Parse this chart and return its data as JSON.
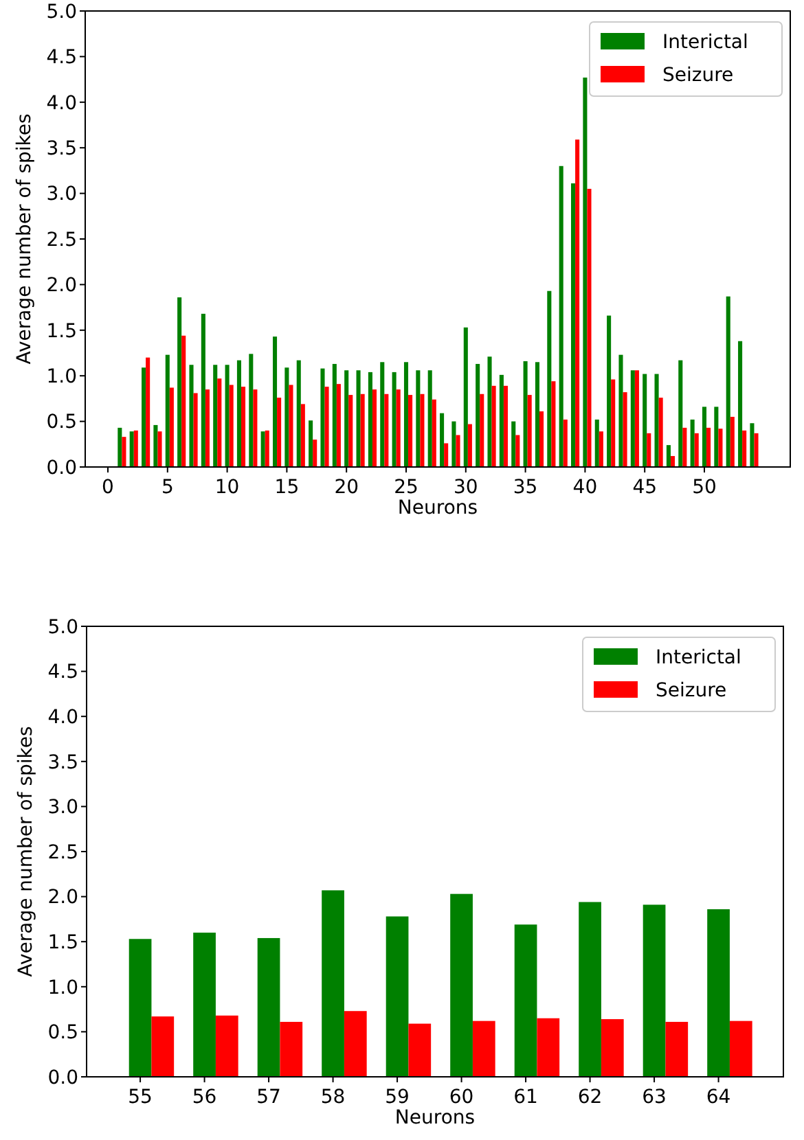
{
  "chart_data": [
    {
      "type": "bar",
      "xlabel": "Neurons",
      "ylabel": "Average number of spikes",
      "x": [
        1,
        2,
        3,
        4,
        5,
        6,
        7,
        8,
        9,
        10,
        11,
        12,
        13,
        14,
        15,
        16,
        17,
        18,
        19,
        20,
        21,
        22,
        23,
        24,
        25,
        26,
        27,
        28,
        29,
        30,
        31,
        32,
        33,
        34,
        35,
        36,
        37,
        38,
        39,
        40,
        41,
        42,
        43,
        44,
        45,
        46,
        47,
        48,
        49,
        50,
        51,
        52,
        53,
        54
      ],
      "series": [
        {
          "name": "Interictal",
          "color": "#008000",
          "values": [
            0.43,
            0.39,
            1.09,
            0.46,
            1.23,
            1.86,
            1.12,
            1.68,
            1.12,
            1.12,
            1.17,
            1.24,
            0.39,
            1.43,
            1.09,
            1.17,
            0.51,
            1.08,
            1.13,
            1.06,
            1.06,
            1.04,
            1.15,
            1.04,
            1.15,
            1.06,
            1.06,
            0.59,
            0.5,
            1.53,
            1.13,
            1.21,
            1.01,
            0.5,
            1.16,
            1.15,
            1.93,
            3.3,
            3.11,
            4.27,
            0.52,
            1.66,
            1.23,
            1.06,
            1.02,
            1.02,
            0.24,
            1.17,
            0.52,
            0.66,
            0.66,
            1.87,
            1.38,
            0.48
          ]
        },
        {
          "name": "Seizure",
          "color": "#ff0000",
          "values": [
            0.33,
            0.4,
            1.2,
            0.39,
            0.87,
            1.44,
            0.81,
            0.85,
            0.97,
            0.9,
            0.88,
            0.85,
            0.4,
            0.76,
            0.9,
            0.69,
            0.3,
            0.88,
            0.91,
            0.79,
            0.8,
            0.85,
            0.8,
            0.85,
            0.79,
            0.8,
            0.74,
            0.26,
            0.35,
            0.47,
            0.8,
            0.89,
            0.89,
            0.35,
            0.79,
            0.61,
            0.94,
            0.52,
            3.59,
            3.05,
            0.39,
            0.96,
            0.82,
            1.06,
            0.37,
            0.76,
            0.12,
            0.43,
            0.37,
            0.43,
            0.42,
            0.55,
            0.4,
            0.37
          ]
        }
      ],
      "xlim": [
        -1.9,
        57.2
      ],
      "xticks": [
        0,
        5,
        10,
        15,
        20,
        25,
        30,
        35,
        40,
        45,
        50
      ],
      "ylim": [
        0,
        5
      ],
      "yticks": [
        {
          "value": 0,
          "label": "0.0"
        },
        {
          "value": 0.5,
          "label": "0.5"
        },
        {
          "value": 1,
          "label": "1.0"
        },
        {
          "value": 1.5,
          "label": "1.5"
        },
        {
          "value": 2,
          "label": "2.0"
        },
        {
          "value": 2.5,
          "label": "2.5"
        },
        {
          "value": 3,
          "label": "3.0"
        },
        {
          "value": 3.5,
          "label": "3.5"
        },
        {
          "value": 4,
          "label": "4.0"
        },
        {
          "value": 4.5,
          "label": "4.5"
        },
        {
          "value": 5,
          "label": "5.0"
        }
      ],
      "legend": "top right"
    },
    {
      "type": "bar",
      "xlabel": "Neurons",
      "ylabel": "Average number of spikes",
      "categories": [
        "55",
        "56",
        "57",
        "58",
        "59",
        "60",
        "61",
        "62",
        "63",
        "64"
      ],
      "series": [
        {
          "name": "Interictal",
          "color": "#008000",
          "values": [
            1.53,
            1.6,
            1.54,
            2.07,
            1.78,
            2.03,
            1.69,
            1.94,
            1.91,
            1.86
          ]
        },
        {
          "name": "Seizure",
          "color": "#ff0000",
          "values": [
            0.67,
            0.68,
            0.61,
            0.73,
            0.59,
            0.62,
            0.65,
            0.64,
            0.61,
            0.62
          ]
        }
      ],
      "ylim": [
        0,
        5
      ],
      "yticks": [
        {
          "value": 0,
          "label": "0.0"
        },
        {
          "value": 0.5,
          "label": "0.5"
        },
        {
          "value": 1,
          "label": "1.0"
        },
        {
          "value": 1.5,
          "label": "1.5"
        },
        {
          "value": 2,
          "label": "2.0"
        },
        {
          "value": 2.5,
          "label": "2.5"
        },
        {
          "value": 3,
          "label": "3.0"
        },
        {
          "value": 3.5,
          "label": "3.5"
        },
        {
          "value": 4,
          "label": "4.0"
        },
        {
          "value": 4.5,
          "label": "4.5"
        },
        {
          "value": 5,
          "label": "5.0"
        }
      ],
      "legend": "top right"
    }
  ]
}
